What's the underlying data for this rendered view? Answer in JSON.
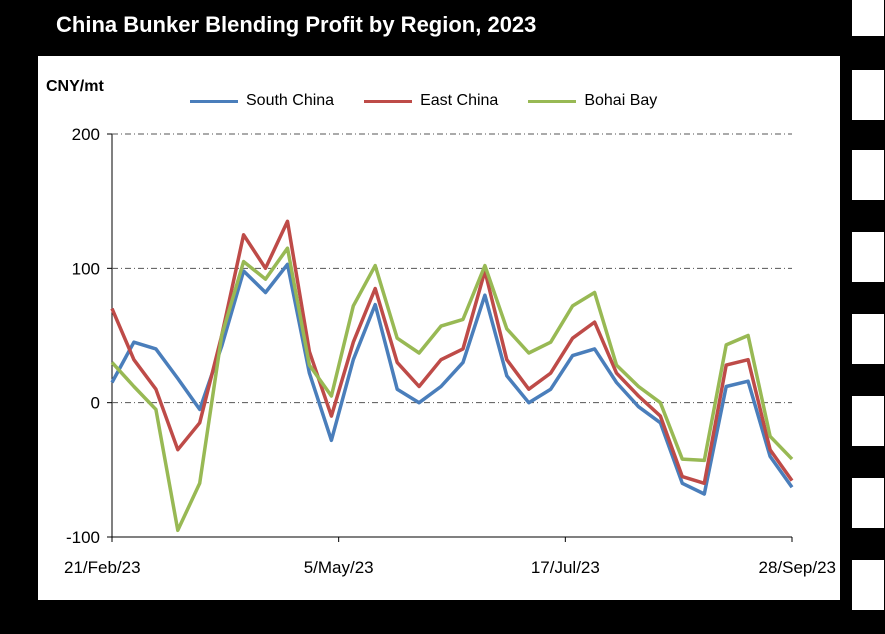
{
  "title": "China Bunker Blending Profit by Region, 2023",
  "unit_label": "CNY/mt",
  "chart_data": {
    "type": "line",
    "title": "China Bunker Blending Profit by Region, 2023",
    "ylabel": "CNY/mt",
    "ylim": [
      -100,
      200
    ],
    "yticks": [
      200,
      100,
      0,
      -100
    ],
    "xtick_labels": [
      "21/Feb/23",
      "5/May/23",
      "17/Jul/23",
      "28/Sep/23"
    ],
    "grid": "horizontal dash-dot",
    "legend_position": "top",
    "series": [
      {
        "name": "South China",
        "color": "#4a7ebb",
        "values": [
          15,
          45,
          40,
          18,
          -5,
          42,
          98,
          82,
          103,
          22,
          -28,
          32,
          73,
          10,
          0,
          12,
          30,
          80,
          20,
          0,
          10,
          35,
          40,
          15,
          -3,
          -15,
          -60,
          -68,
          12,
          16,
          -40,
          -63
        ]
      },
      {
        "name": "East China",
        "color": "#be4b48",
        "values": [
          70,
          32,
          10,
          -35,
          -15,
          50,
          125,
          100,
          135,
          38,
          -10,
          45,
          85,
          30,
          12,
          32,
          40,
          98,
          32,
          10,
          22,
          48,
          60,
          22,
          5,
          -10,
          -55,
          -60,
          28,
          32,
          -35,
          -58
        ]
      },
      {
        "name": "Bohai Bay",
        "color": "#98b954",
        "values": [
          30,
          12,
          -5,
          -95,
          -60,
          50,
          105,
          92,
          115,
          28,
          5,
          72,
          102,
          48,
          37,
          57,
          62,
          102,
          55,
          37,
          45,
          72,
          82,
          28,
          12,
          0,
          -42,
          -43,
          43,
          50,
          -25,
          -42
        ]
      }
    ]
  }
}
